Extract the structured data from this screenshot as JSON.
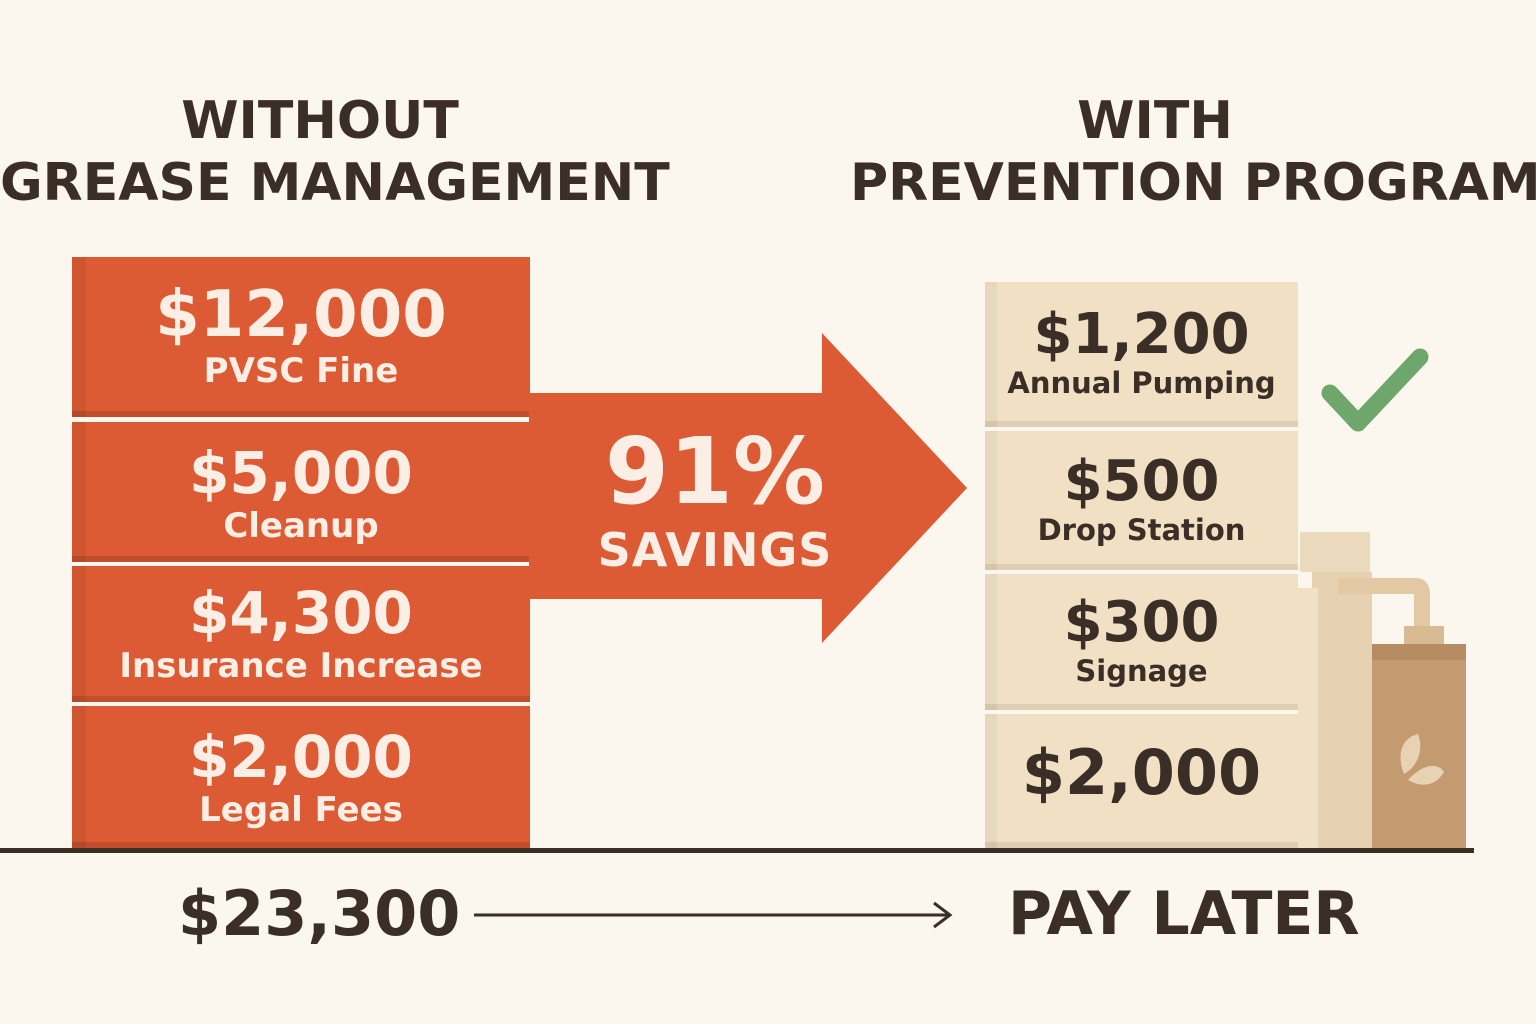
{
  "left": {
    "heading_line1": "WITHOUT",
    "heading_line2": "GREASE MANAGEMENT",
    "blocks": [
      {
        "amount": "$12,000",
        "label": "PVSC Fine"
      },
      {
        "amount": "$5,000",
        "label": "Cleanup"
      },
      {
        "amount": "$4,300",
        "label": "Insurance Increase"
      },
      {
        "amount": "$2,000",
        "label": "Legal Fees"
      }
    ],
    "total": "$23,300"
  },
  "middle": {
    "percent": "91%",
    "word": "SAVINGS"
  },
  "right": {
    "heading_line1": "WITH",
    "heading_line2": "PREVENTION PROGRAM",
    "blocks": [
      {
        "amount": "$1,200",
        "label": "Annual Pumping"
      },
      {
        "amount": "$500",
        "label": "Drop Station"
      },
      {
        "amount": "$300",
        "label": "Signage"
      },
      {
        "amount": "$2,000",
        "label": ""
      }
    ],
    "footer": "PAY LATER"
  },
  "colors": {
    "accent_orange": "#dc5b34",
    "block_beige": "#f1e0c4",
    "check_green": "#6fa66b",
    "text_dark": "#3a2e27",
    "background": "#fbf6ee"
  },
  "icons": [
    "checkmark-icon",
    "grease-container-icon",
    "leaf-icon"
  ]
}
